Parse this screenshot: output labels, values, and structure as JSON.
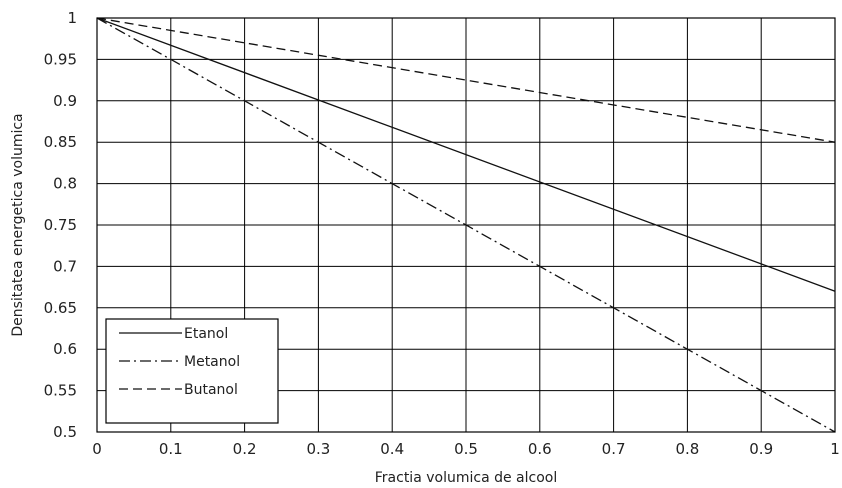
{
  "chart_data": {
    "type": "line",
    "title": "",
    "xlabel": "Fractia volumica de alcool",
    "ylabel": "Densitatea energetica volumica",
    "xlim": [
      0,
      1
    ],
    "ylim": [
      0.5,
      1
    ],
    "xticks": [
      "0",
      "0.1",
      "0.2",
      "0.3",
      "0.4",
      "0.5",
      "0.6",
      "0.7",
      "0.8",
      "0.9",
      "1"
    ],
    "yticks": [
      "0.5",
      "0.55",
      "0.6",
      "0.65",
      "0.7",
      "0.75",
      "0.8",
      "0.85",
      "0.9",
      "0.95",
      "1"
    ],
    "grid": true,
    "legend_position": "bottom-left",
    "series": [
      {
        "name": "Etanol",
        "style": "solid",
        "x": [
          0,
          1
        ],
        "y": [
          1,
          0.67
        ]
      },
      {
        "name": "Metanol",
        "style": "dashdot",
        "x": [
          0,
          1
        ],
        "y": [
          1,
          0.5
        ]
      },
      {
        "name": "Butanol",
        "style": "dashed",
        "x": [
          0,
          1
        ],
        "y": [
          1,
          0.85
        ]
      }
    ]
  }
}
